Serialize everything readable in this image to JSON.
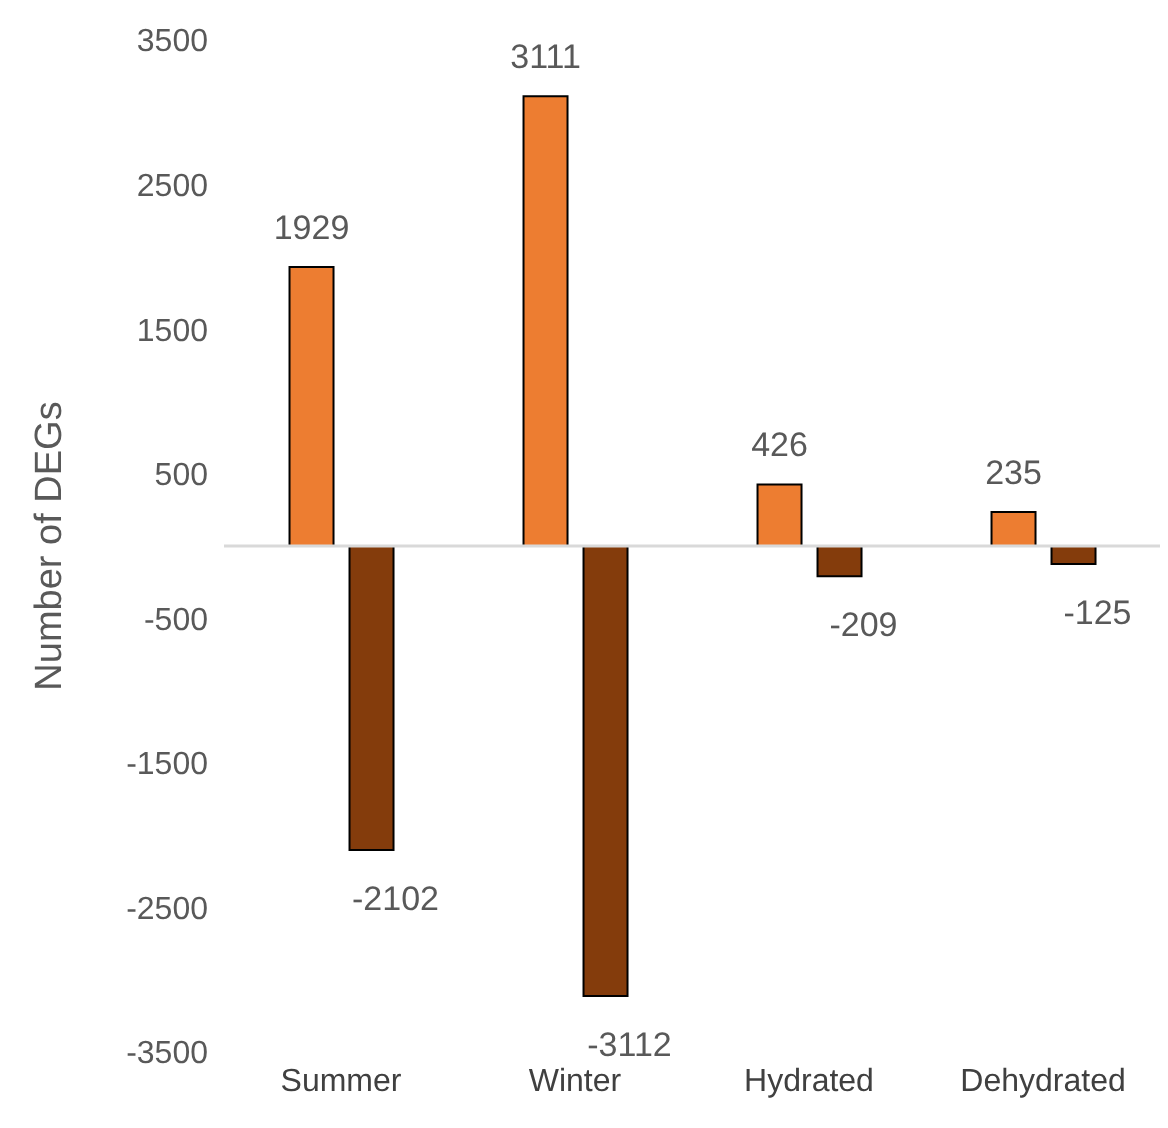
{
  "chart_data": {
    "type": "bar",
    "ylabel": "Number of DEGs",
    "categories": [
      "Summer",
      "Winter",
      "Hydrated",
      "Dehydrated"
    ],
    "series": [
      {
        "color": "#ed7d31",
        "values": [
          1929,
          3111,
          426,
          235
        ]
      },
      {
        "color": "#843c0c",
        "values": [
          -2102,
          -3112,
          -209,
          -125
        ]
      }
    ],
    "ylim": [
      -3500,
      3500
    ],
    "yticks": [
      -3500,
      -2500,
      -1500,
      -500,
      500,
      1500,
      2500,
      3500
    ],
    "data_labels": true,
    "grid": false,
    "legend": false
  }
}
